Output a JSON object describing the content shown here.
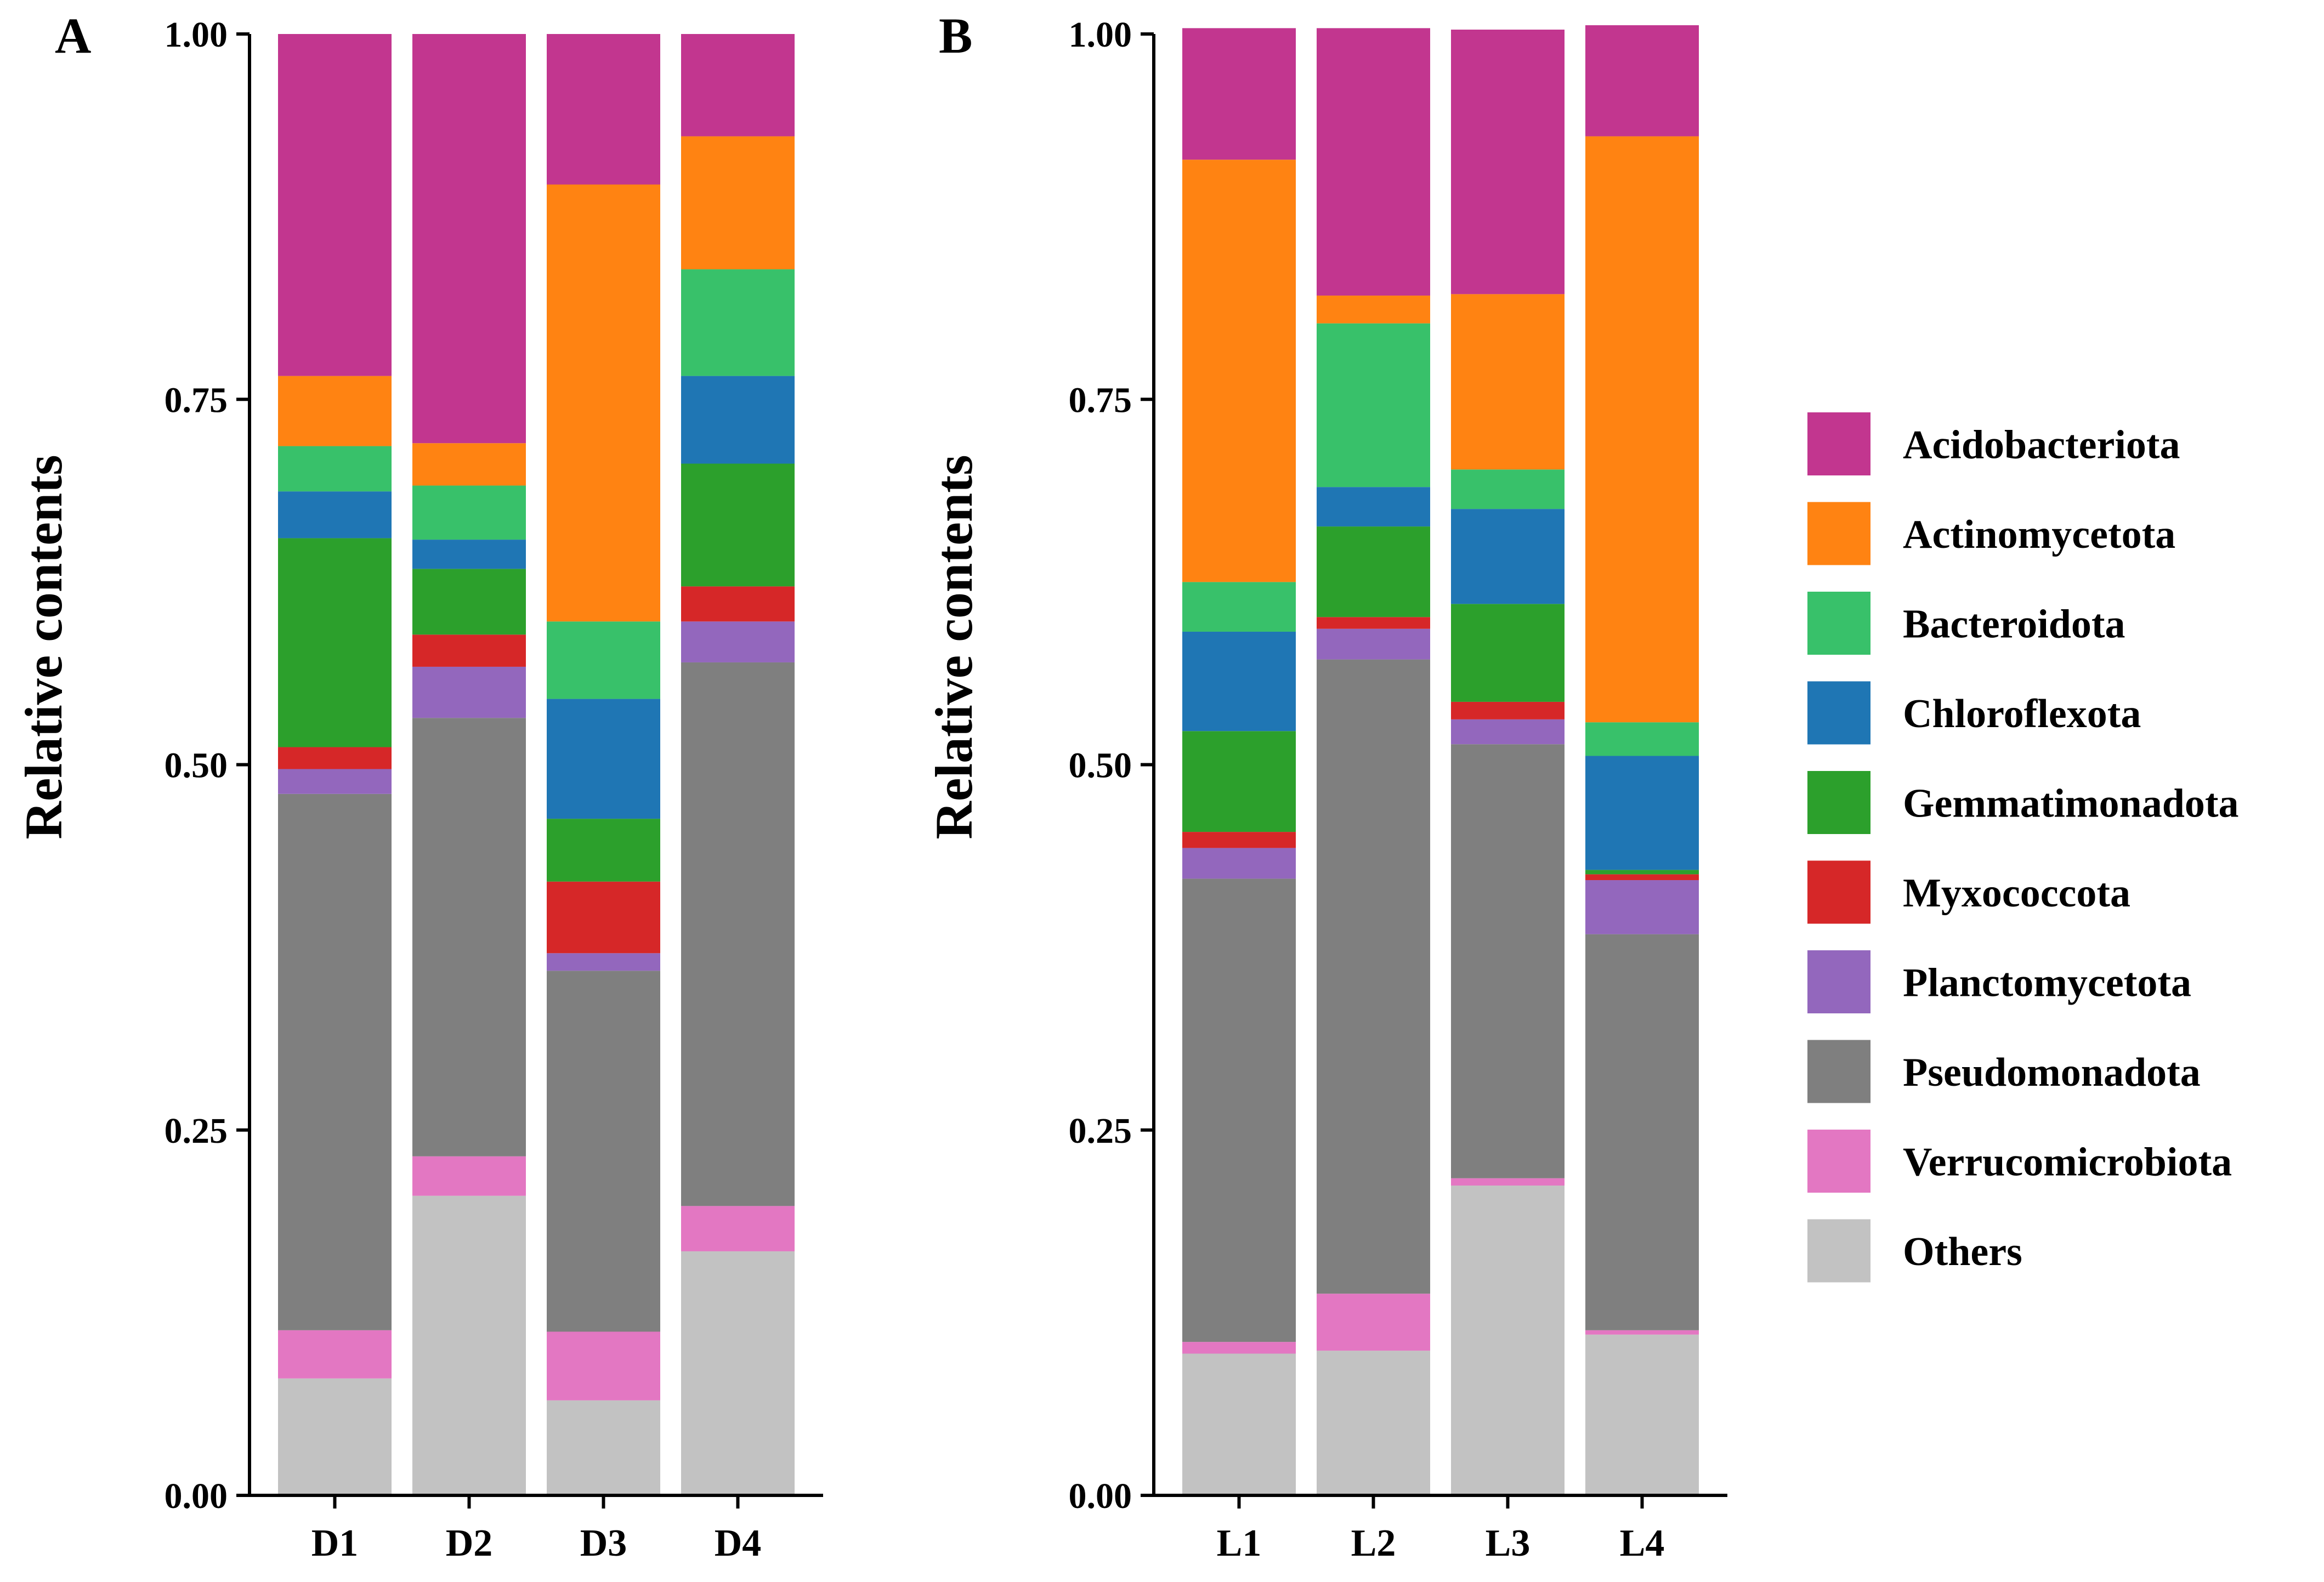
{
  "chart_data": [
    {
      "type": "bar",
      "stacked": true,
      "panel_label": "A",
      "ylabel": "Relative contents",
      "xlabel": "",
      "ylim": [
        0,
        1
      ],
      "yticks": [
        "0.00",
        "0.25",
        "0.50",
        "0.75",
        "1.00"
      ],
      "categories": [
        "D1",
        "D2",
        "D3",
        "D4"
      ],
      "series": [
        {
          "name": "Others",
          "values": [
            0.08,
            0.205,
            0.065,
            0.167
          ]
        },
        {
          "name": "Verrucomicrobiota",
          "values": [
            0.033,
            0.027,
            0.047,
            0.031
          ]
        },
        {
          "name": "Pseudomonadota",
          "values": [
            0.367,
            0.3,
            0.247,
            0.372
          ]
        },
        {
          "name": "Planctomycetota",
          "values": [
            0.017,
            0.035,
            0.012,
            0.028
          ]
        },
        {
          "name": "Myxococcota",
          "values": [
            0.015,
            0.022,
            0.049,
            0.024
          ]
        },
        {
          "name": "Gemmatimonadota",
          "values": [
            0.143,
            0.045,
            0.043,
            0.084
          ]
        },
        {
          "name": "Chloroflexota",
          "values": [
            0.032,
            0.02,
            0.082,
            0.06
          ]
        },
        {
          "name": "Bacteroidota",
          "values": [
            0.031,
            0.037,
            0.053,
            0.073
          ]
        },
        {
          "name": "Actinomycetota",
          "values": [
            0.048,
            0.029,
            0.299,
            0.091
          ]
        },
        {
          "name": "Acidobacteriota",
          "values": [
            0.234,
            0.28,
            0.103,
            0.07
          ]
        }
      ]
    },
    {
      "type": "bar",
      "stacked": true,
      "panel_label": "B",
      "ylabel": "Relative contents",
      "xlabel": "",
      "ylim": [
        0,
        1
      ],
      "yticks": [
        "0.00",
        "0.25",
        "0.50",
        "0.75",
        "1.00"
      ],
      "categories": [
        "L1",
        "L2",
        "L3",
        "L4"
      ],
      "series": [
        {
          "name": "Others",
          "values": [
            0.097,
            0.099,
            0.212,
            0.11
          ]
        },
        {
          "name": "Verrucomicrobiota",
          "values": [
            0.008,
            0.039,
            0.005,
            0.003
          ]
        },
        {
          "name": "Pseudomonadota",
          "values": [
            0.317,
            0.434,
            0.297,
            0.271
          ]
        },
        {
          "name": "Planctomycetota",
          "values": [
            0.021,
            0.021,
            0.017,
            0.037
          ]
        },
        {
          "name": "Myxococcota",
          "values": [
            0.011,
            0.008,
            0.012,
            0.004
          ]
        },
        {
          "name": "Gemmatimonadota",
          "values": [
            0.069,
            0.062,
            0.067,
            0.003
          ]
        },
        {
          "name": "Chloroflexota",
          "values": [
            0.068,
            0.027,
            0.065,
            0.078
          ]
        },
        {
          "name": "Bacteroidota",
          "values": [
            0.034,
            0.112,
            0.027,
            0.023
          ]
        },
        {
          "name": "Actinomycetota",
          "values": [
            0.289,
            0.019,
            0.12,
            0.401
          ]
        },
        {
          "name": "Acidobacteriota",
          "values": [
            0.09,
            0.183,
            0.181,
            0.076
          ]
        }
      ]
    }
  ],
  "legend": [
    {
      "name": "Acidobacteriota",
      "color": "#C2368F"
    },
    {
      "name": "Actinomycetota",
      "color": "#FF8312"
    },
    {
      "name": "Bacteroidota",
      "color": "#38C16A"
    },
    {
      "name": "Chloroflexota",
      "color": "#1F76B4"
    },
    {
      "name": "Gemmatimonadota",
      "color": "#2CA02C"
    },
    {
      "name": "Myxococcota",
      "color": "#D62728"
    },
    {
      "name": "Planctomycetota",
      "color": "#9367BD"
    },
    {
      "name": "Pseudomonadota",
      "color": "#7F7F7F"
    },
    {
      "name": "Verrucomicrobiota",
      "color": "#E377C2"
    },
    {
      "name": "Others",
      "color": "#C2C2C2"
    }
  ]
}
